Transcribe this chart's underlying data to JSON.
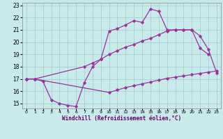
{
  "xlabel": "Windchill (Refroidissement éolien,°C)",
  "bg_color": "#c8eaea",
  "grid_color": "#a0c8c8",
  "line_color": "#993399",
  "xlim": [
    -0.5,
    23.5
  ],
  "ylim": [
    14.6,
    23.2
  ],
  "yticks": [
    15,
    16,
    17,
    18,
    19,
    20,
    21,
    22,
    23
  ],
  "xticks": [
    0,
    1,
    2,
    3,
    4,
    5,
    6,
    7,
    8,
    9,
    10,
    11,
    12,
    13,
    14,
    15,
    16,
    17,
    18,
    19,
    20,
    21,
    22,
    23
  ],
  "line1_x": [
    0,
    1,
    2,
    3,
    4,
    5,
    6,
    7,
    8,
    9,
    10,
    11,
    12,
    13,
    14,
    15,
    16,
    17,
    18,
    19,
    20,
    21,
    22
  ],
  "line1_y": [
    17.0,
    17.0,
    16.8,
    15.3,
    15.0,
    14.85,
    14.75,
    16.7,
    18.0,
    18.6,
    20.9,
    21.1,
    21.4,
    21.75,
    21.6,
    22.7,
    22.5,
    21.0,
    21.0,
    21.0,
    21.0,
    19.5,
    19.0
  ],
  "line2_x": [
    0,
    1,
    7,
    8,
    9,
    10,
    11,
    12,
    13,
    14,
    15,
    16,
    17,
    18,
    19,
    20,
    21,
    22,
    23
  ],
  "line2_y": [
    17.0,
    17.0,
    18.0,
    18.3,
    18.6,
    19.0,
    19.3,
    19.6,
    19.8,
    20.1,
    20.3,
    20.6,
    20.9,
    21.0,
    21.0,
    21.0,
    20.5,
    19.4,
    17.5
  ],
  "line3_x": [
    0,
    1,
    10,
    11,
    12,
    13,
    14,
    15,
    16,
    17,
    18,
    19,
    20,
    21,
    22,
    23
  ],
  "line3_y": [
    17.0,
    17.0,
    15.9,
    16.1,
    16.3,
    16.45,
    16.6,
    16.75,
    16.9,
    17.05,
    17.15,
    17.25,
    17.35,
    17.45,
    17.55,
    17.65
  ]
}
